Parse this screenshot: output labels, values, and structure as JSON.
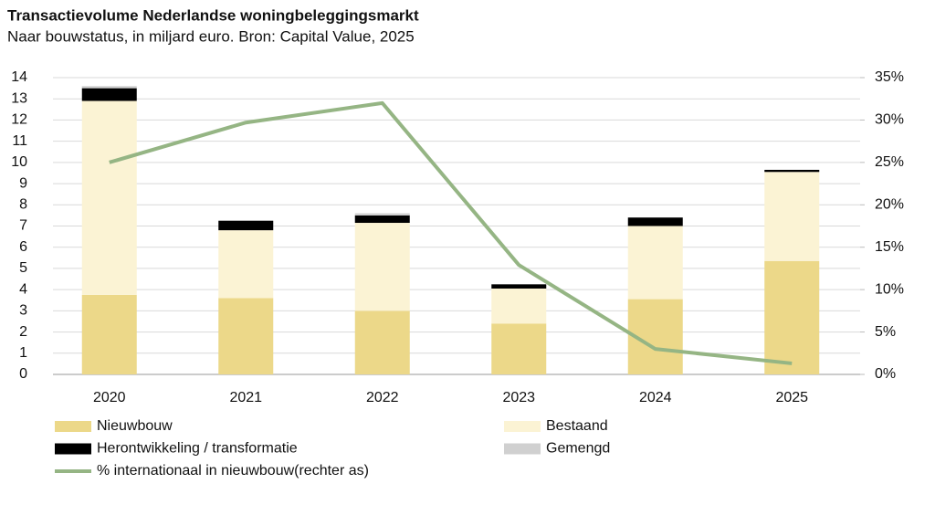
{
  "chart_data": {
    "type": "bar",
    "stacked": true,
    "title": "Transactievolume Nederlandse woningbeleggingsmarkt",
    "subtitle": "Naar bouwstatus, in miljard euro. Bron: Capital Value, 2025",
    "categories": [
      "2020",
      "2021",
      "2022",
      "2023",
      "2024",
      "2025"
    ],
    "series": [
      {
        "name": "Nieuwbouw",
        "color": "#ecd889",
        "values": [
          3.75,
          3.6,
          3.0,
          2.4,
          3.55,
          5.35
        ]
      },
      {
        "name": "Bestaand",
        "color": "#fbf3d4",
        "values": [
          9.15,
          3.2,
          4.15,
          1.65,
          3.45,
          4.2
        ]
      },
      {
        "name": "Herontwikkeling / transformatie",
        "color": "#000000",
        "values": [
          0.6,
          0.45,
          0.35,
          0.2,
          0.4,
          0.1
        ]
      },
      {
        "name": "Gemengd",
        "color": "#d0d0d0",
        "values": [
          0.1,
          0,
          0.1,
          0,
          0,
          0
        ]
      },
      {
        "name": "% internationaal in nieuwbouw(rechter as)",
        "color": "#95b584",
        "type": "line",
        "axis": "y2",
        "values": [
          25,
          29.7,
          32,
          12.9,
          3,
          1.3
        ]
      }
    ],
    "ylim": [
      0,
      14
    ],
    "yticks": [
      0,
      1,
      2,
      3,
      4,
      5,
      6,
      7,
      8,
      9,
      10,
      11,
      12,
      13,
      14
    ],
    "y2lim": [
      0,
      35
    ],
    "y2ticks": [
      {
        "value": 0,
        "label": "0%"
      },
      {
        "value": 5,
        "label": "5%"
      },
      {
        "value": 10,
        "label": "10%"
      },
      {
        "value": 15,
        "label": "15%"
      },
      {
        "value": 20,
        "label": "20%"
      },
      {
        "value": 25,
        "label": "25%"
      },
      {
        "value": 30,
        "label": "30%"
      },
      {
        "value": 35,
        "label": "35%"
      }
    ],
    "grid": true
  }
}
